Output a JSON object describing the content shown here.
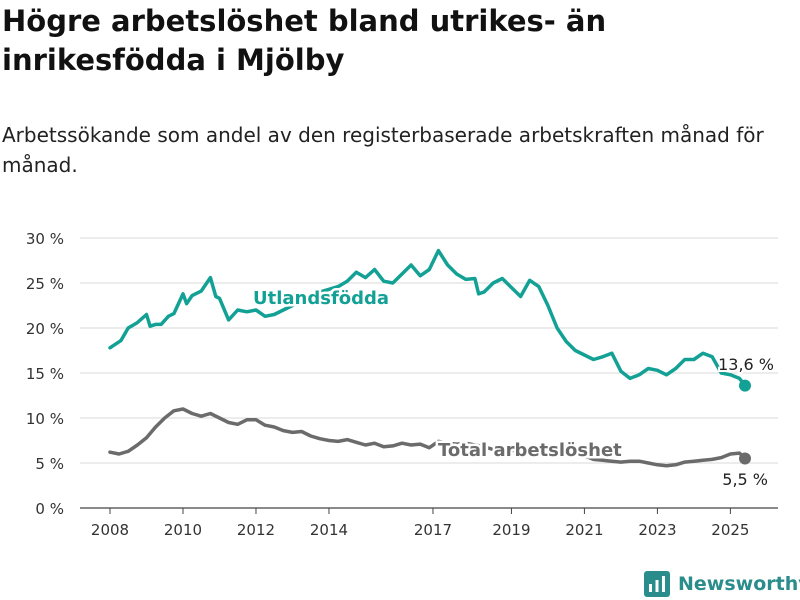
{
  "title": "Högre arbetslöshet bland utrikes- än inrikesfödda i Mjölby",
  "subtitle": "Arbetssökande som andel av den registerbaserade arbetskraften månad för månad.",
  "brand": {
    "name": "Newsworthy"
  },
  "colors": {
    "teal": "#14a195",
    "gray": "#6b6b6b",
    "grid": "#d9d9d9",
    "brand": "#2b8c8c"
  },
  "chart_data": {
    "type": "line",
    "title": "",
    "xlabel": "",
    "ylabel": "",
    "x_ticks": [
      "2008",
      "2010",
      "2012",
      "2014",
      "2017",
      "2019",
      "2021",
      "2023",
      "2025"
    ],
    "x_tick_values": [
      2008,
      2010,
      2012,
      2014,
      2016.85,
      2019,
      2021,
      2023,
      2025
    ],
    "y_ticks": [
      "30 %",
      "25 %",
      "20 %",
      "15 %",
      "10 %",
      "5 %",
      "0 %"
    ],
    "y_tick_values": [
      30,
      25,
      20,
      15,
      10,
      5,
      0
    ],
    "xlim": [
      2008,
      2025.4
    ],
    "ylim": [
      0,
      30
    ],
    "grid": true,
    "legend": "inline labels",
    "series": [
      {
        "name": "Utlandsfödda",
        "color": "#14a195",
        "end_label": "13,6 %",
        "x": [
          2008.0,
          2008.3,
          2008.5,
          2008.75,
          2009.0,
          2009.1,
          2009.25,
          2009.4,
          2009.6,
          2009.75,
          2010.0,
          2010.1,
          2010.25,
          2010.5,
          2010.75,
          2010.9,
          2011.0,
          2011.25,
          2011.5,
          2011.75,
          2012.0,
          2012.25,
          2012.5,
          2012.75,
          2013.0,
          2013.25,
          2013.5,
          2013.75,
          2014.0,
          2014.25,
          2014.5,
          2014.75,
          2015.0,
          2015.25,
          2015.5,
          2015.75,
          2016.0,
          2016.25,
          2016.5,
          2016.75,
          2017.0,
          2017.25,
          2017.5,
          2017.75,
          2018.0,
          2018.1,
          2018.25,
          2018.5,
          2018.75,
          2019.0,
          2019.25,
          2019.5,
          2019.75,
          2020.0,
          2020.25,
          2020.5,
          2020.75,
          2021.0,
          2021.25,
          2021.5,
          2021.75,
          2022.0,
          2022.25,
          2022.5,
          2022.75,
          2023.0,
          2023.25,
          2023.5,
          2023.75,
          2024.0,
          2024.25,
          2024.5,
          2024.75,
          2025.0,
          2025.25,
          2025.4
        ],
        "y": [
          17.8,
          18.6,
          20.0,
          20.6,
          21.5,
          20.2,
          20.4,
          20.4,
          21.3,
          21.6,
          23.8,
          22.7,
          23.6,
          24.1,
          25.6,
          23.5,
          23.3,
          20.9,
          22.0,
          21.8,
          22.0,
          21.3,
          21.5,
          22.0,
          22.5,
          23.0,
          23.6,
          24.0,
          24.3,
          24.6,
          25.2,
          26.2,
          25.6,
          26.5,
          25.2,
          25.0,
          26.0,
          27.0,
          25.8,
          26.5,
          28.6,
          27.0,
          26.0,
          25.4,
          25.5,
          23.8,
          24.0,
          25.0,
          25.5,
          24.5,
          23.5,
          25.3,
          24.6,
          22.5,
          20.0,
          18.5,
          17.5,
          17.0,
          16.5,
          16.8,
          17.2,
          15.2,
          14.4,
          14.8,
          15.5,
          15.3,
          14.8,
          15.5,
          16.5,
          16.5,
          17.2,
          16.8,
          15.0,
          14.8,
          14.4,
          13.6
        ]
      },
      {
        "name": "Total arbetslöshet",
        "color": "#6b6b6b",
        "end_label": "5,5 %",
        "x": [
          2008.0,
          2008.25,
          2008.5,
          2008.75,
          2009.0,
          2009.25,
          2009.5,
          2009.75,
          2010.0,
          2010.25,
          2010.5,
          2010.75,
          2011.0,
          2011.25,
          2011.5,
          2011.75,
          2012.0,
          2012.25,
          2012.5,
          2012.75,
          2013.0,
          2013.25,
          2013.5,
          2013.75,
          2014.0,
          2014.25,
          2014.5,
          2014.75,
          2015.0,
          2015.25,
          2015.5,
          2015.75,
          2016.0,
          2016.25,
          2016.5,
          2016.75,
          2017.0,
          2017.25,
          2017.5,
          2017.75,
          2018.0,
          2018.25,
          2018.5,
          2018.75,
          2019.0,
          2019.25,
          2019.5,
          2019.75,
          2020.0,
          2020.25,
          2020.5,
          2020.75,
          2021.0,
          2021.25,
          2021.5,
          2021.75,
          2022.0,
          2022.25,
          2022.5,
          2022.75,
          2023.0,
          2023.25,
          2023.5,
          2023.75,
          2024.0,
          2024.25,
          2024.5,
          2024.75,
          2025.0,
          2025.25,
          2025.4
        ],
        "y": [
          6.2,
          6.0,
          6.3,
          7.0,
          7.8,
          9.0,
          10.0,
          10.8,
          11.0,
          10.5,
          10.2,
          10.5,
          10.0,
          9.5,
          9.3,
          9.8,
          9.8,
          9.2,
          9.0,
          8.6,
          8.4,
          8.5,
          8.0,
          7.7,
          7.5,
          7.4,
          7.6,
          7.3,
          7.0,
          7.2,
          6.8,
          6.9,
          7.2,
          7.0,
          7.1,
          6.7,
          7.4,
          7.2,
          7.1,
          7.2,
          7.0,
          6.8,
          6.5,
          6.4,
          6.4,
          6.3,
          6.5,
          6.4,
          6.2,
          6.5,
          6.8,
          6.3,
          5.8,
          5.4,
          5.3,
          5.2,
          5.1,
          5.2,
          5.2,
          5.0,
          4.8,
          4.7,
          4.8,
          5.1,
          5.2,
          5.3,
          5.4,
          5.6,
          6.0,
          6.1,
          5.5
        ]
      }
    ]
  }
}
